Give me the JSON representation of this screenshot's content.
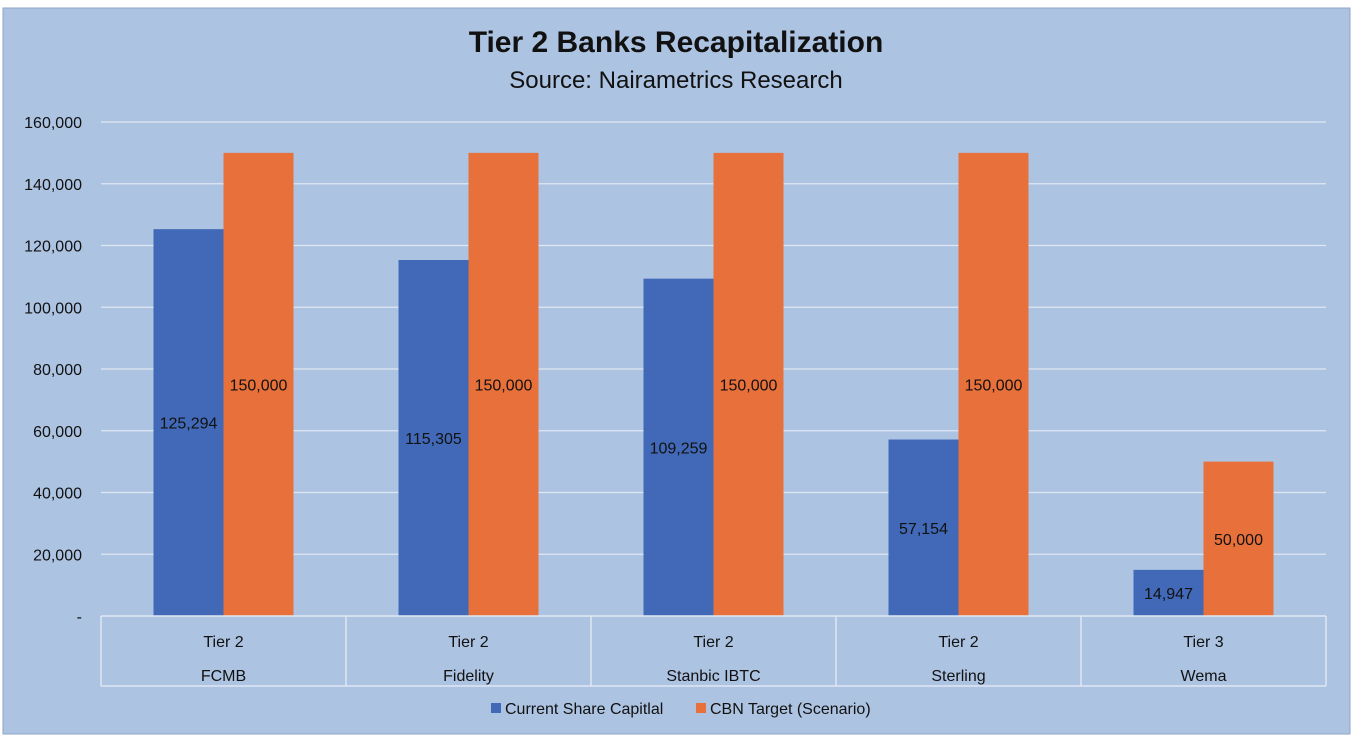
{
  "chart_data": {
    "type": "bar",
    "title": "Tier 2 Banks Recapitalization",
    "subtitle": "Source: Nairametrics Research",
    "categories": [
      {
        "tier": "Tier 2",
        "bank": "FCMB"
      },
      {
        "tier": "Tier 2",
        "bank": "Fidelity"
      },
      {
        "tier": "Tier 2",
        "bank": "Stanbic IBTC"
      },
      {
        "tier": "Tier 2",
        "bank": "Sterling"
      },
      {
        "tier": "Tier 3",
        "bank": "Wema"
      }
    ],
    "series": [
      {
        "name": "Current Share Capitlal",
        "color": "#4169b8",
        "values": [
          125294,
          115305,
          109259,
          57154,
          14947
        ],
        "labels": [
          "125,294",
          "115,305",
          "109,259",
          "57,154",
          "14,947"
        ]
      },
      {
        "name": "CBN Target (Scenario)",
        "color": "#e8703a",
        "values": [
          150000,
          150000,
          150000,
          150000,
          50000
        ],
        "labels": [
          "150,000",
          "150,000",
          "150,000",
          "150,000",
          "50,000"
        ]
      }
    ],
    "ylim": [
      0,
      160000
    ],
    "yticks": [
      0,
      20000,
      40000,
      60000,
      80000,
      100000,
      120000,
      140000,
      160000
    ],
    "ytick_labels": [
      "-",
      "20,000",
      "40,000",
      "60,000",
      "80,000",
      "100,000",
      "120,000",
      "140,000",
      "160,000"
    ],
    "grid": true,
    "legend_position": "bottom",
    "plot_background": "#adc3e2"
  }
}
